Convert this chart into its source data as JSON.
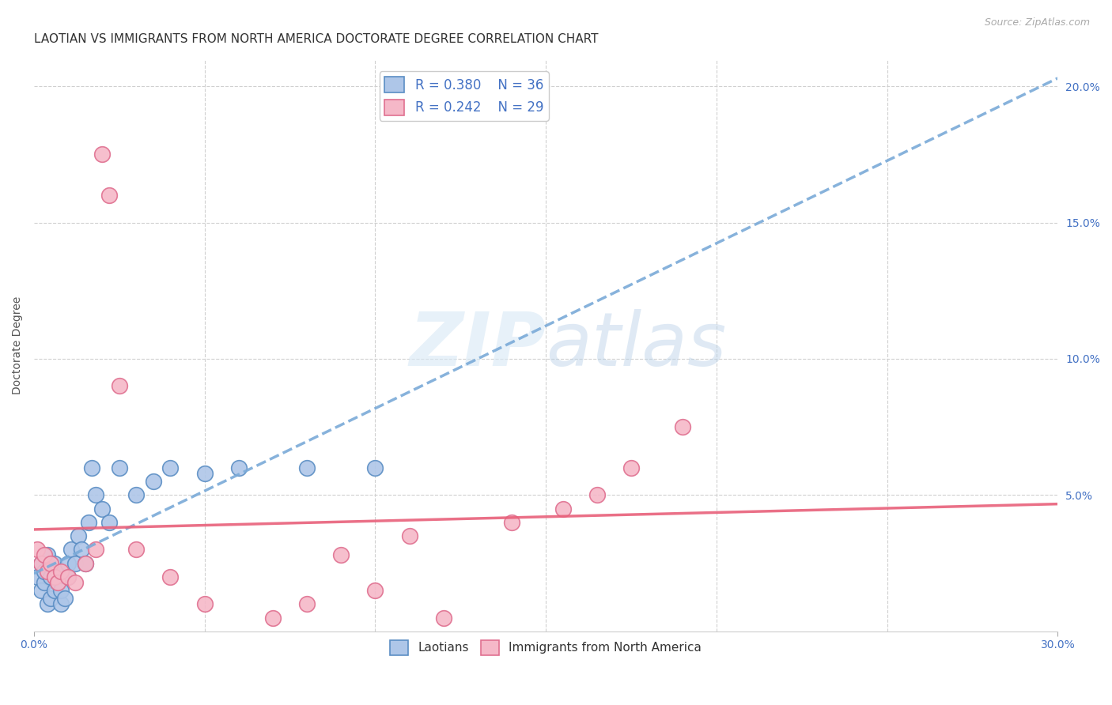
{
  "title": "LAOTIAN VS IMMIGRANTS FROM NORTH AMERICA DOCTORATE DEGREE CORRELATION CHART",
  "source": "Source: ZipAtlas.com",
  "ylabel": "Doctorate Degree",
  "xlim": [
    0.0,
    0.3
  ],
  "ylim": [
    0.0,
    0.21
  ],
  "xticks": [
    0.0,
    0.3
  ],
  "xtick_labels": [
    "0.0%",
    "30.0%"
  ],
  "yticks_right": [
    0.05,
    0.1,
    0.15,
    0.2
  ],
  "ytick_right_labels": [
    "5.0%",
    "10.0%",
    "15.0%",
    "20.0%"
  ],
  "background_color": "#ffffff",
  "grid_color": "#d0d0d0",
  "laotian_color": "#aec6e8",
  "immigrant_color": "#f5b8c8",
  "laotian_edge_color": "#5b8ec4",
  "immigrant_edge_color": "#e07090",
  "laotian_line_color": "#7aaad8",
  "immigrant_line_color": "#e8607a",
  "legend_R1": "R = 0.380",
  "legend_N1": "N = 36",
  "legend_R2": "R = 0.242",
  "legend_N2": "N = 29",
  "laotian_x": [
    0.001,
    0.002,
    0.002,
    0.003,
    0.003,
    0.004,
    0.004,
    0.005,
    0.005,
    0.006,
    0.006,
    0.007,
    0.007,
    0.008,
    0.008,
    0.009,
    0.01,
    0.01,
    0.011,
    0.012,
    0.013,
    0.014,
    0.015,
    0.016,
    0.017,
    0.018,
    0.02,
    0.022,
    0.025,
    0.03,
    0.035,
    0.04,
    0.05,
    0.06,
    0.08,
    0.1
  ],
  "laotian_y": [
    0.02,
    0.025,
    0.015,
    0.018,
    0.022,
    0.01,
    0.028,
    0.012,
    0.02,
    0.015,
    0.025,
    0.018,
    0.022,
    0.01,
    0.015,
    0.012,
    0.02,
    0.025,
    0.03,
    0.025,
    0.035,
    0.03,
    0.025,
    0.04,
    0.06,
    0.05,
    0.045,
    0.04,
    0.06,
    0.05,
    0.055,
    0.06,
    0.058,
    0.06,
    0.06,
    0.06
  ],
  "immigrant_x": [
    0.001,
    0.002,
    0.003,
    0.004,
    0.005,
    0.006,
    0.007,
    0.008,
    0.01,
    0.012,
    0.015,
    0.018,
    0.02,
    0.022,
    0.025,
    0.03,
    0.04,
    0.05,
    0.07,
    0.08,
    0.09,
    0.1,
    0.11,
    0.12,
    0.14,
    0.155,
    0.165,
    0.175,
    0.19
  ],
  "immigrant_y": [
    0.03,
    0.025,
    0.028,
    0.022,
    0.025,
    0.02,
    0.018,
    0.022,
    0.02,
    0.018,
    0.025,
    0.03,
    0.175,
    0.16,
    0.09,
    0.03,
    0.02,
    0.01,
    0.005,
    0.01,
    0.028,
    0.015,
    0.035,
    0.005,
    0.04,
    0.045,
    0.05,
    0.06,
    0.075
  ],
  "title_fontsize": 11,
  "axis_label_fontsize": 10,
  "tick_fontsize": 10,
  "legend_fontsize": 12,
  "source_fontsize": 9
}
